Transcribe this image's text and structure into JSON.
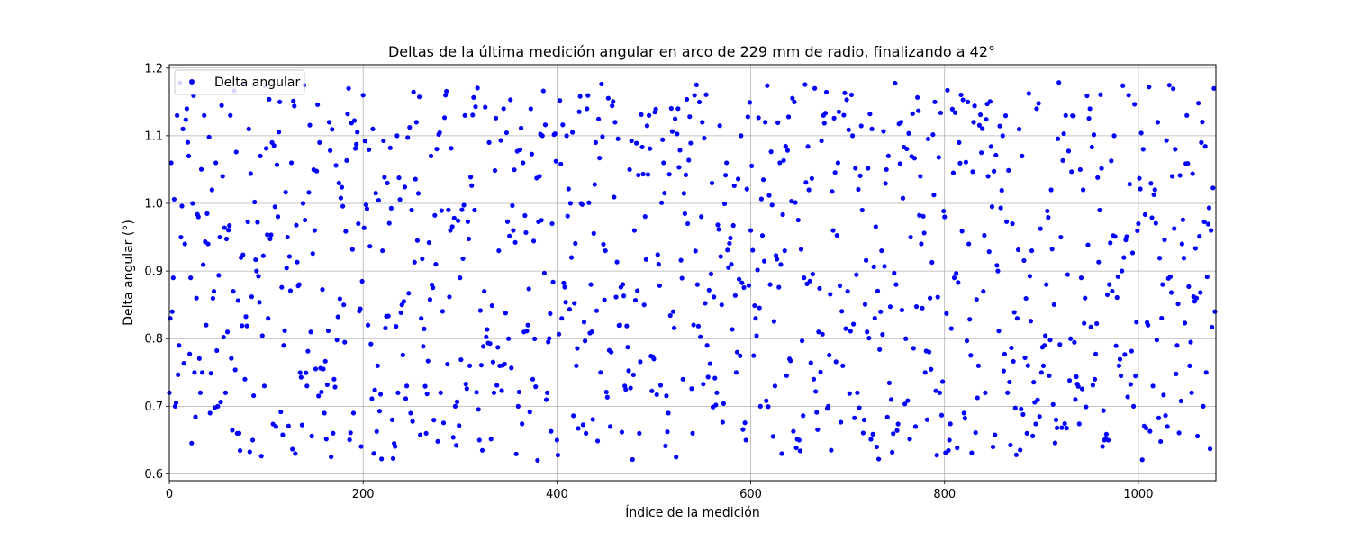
{
  "chart_data": {
    "type": "scatter",
    "title": "Deltas de la última medición angular en arco de 229 mm de radio, finalizando a 42°",
    "xlabel": "Índice de la medición",
    "ylabel": "Delta angular (°)",
    "xlim": [
      0,
      1080
    ],
    "ylim": [
      0.59,
      1.205
    ],
    "xticks": [
      0,
      200,
      400,
      600,
      800,
      1000
    ],
    "yticks": [
      0.6,
      0.7,
      0.8,
      0.9,
      1.0,
      1.1,
      1.2
    ],
    "xtick_labels": [
      "0",
      "200",
      "400",
      "600",
      "800",
      "1000"
    ],
    "ytick_labels": [
      "0.6",
      "0.7",
      "0.8",
      "0.9",
      "1.0",
      "1.1",
      "1.2"
    ],
    "grid": true,
    "legend_position": "top-left",
    "series": [
      {
        "name": "Delta angular",
        "color": "#0000ff",
        "marker": "circle",
        "point_count": 1080,
        "value_range": [
          0.62,
          1.18
        ],
        "note_range": "approx uniform noise between 0.62 and 1.18",
        "sample_points": [
          [
            0,
            0.72
          ],
          [
            1,
            0.83
          ],
          [
            2,
            1.06
          ],
          [
            3,
            0.84
          ],
          [
            4,
            0.89
          ],
          [
            6,
            0.7
          ],
          [
            8,
            1.13
          ],
          [
            10,
            0.79
          ],
          [
            12,
            0.95
          ],
          [
            14,
            1.11
          ],
          [
            16,
            0.94
          ],
          [
            18,
            1.14
          ],
          [
            20,
            1.07
          ],
          [
            22,
            0.89
          ],
          [
            24,
            1.0
          ],
          [
            26,
            0.75
          ],
          [
            28,
            0.86
          ],
          [
            30,
            0.98
          ],
          [
            32,
            0.72
          ],
          [
            34,
            0.75
          ],
          [
            36,
            1.13
          ],
          [
            38,
            0.82
          ],
          [
            40,
            0.94
          ],
          [
            42,
            0.69
          ],
          [
            44,
            1.02
          ],
          [
            46,
            0.87
          ],
          [
            48,
            1.06
          ],
          [
            50,
            0.7
          ],
          [
            52,
            0.95
          ],
          [
            55,
            1.04
          ],
          [
            58,
            0.72
          ],
          [
            60,
            0.81
          ],
          [
            63,
            1.13
          ],
          [
            66,
            0.87
          ],
          [
            70,
            0.66
          ],
          [
            74,
            0.92
          ],
          [
            78,
            0.74
          ],
          [
            82,
            1.11
          ],
          [
            86,
            0.65
          ],
          [
            90,
            0.9
          ],
          [
            94,
            1.07
          ],
          [
            98,
            0.73
          ],
          [
            102,
            0.83
          ],
          [
            106,
            1.09
          ],
          [
            110,
            0.67
          ],
          [
            114,
            1.15
          ],
          [
            118,
            0.79
          ],
          [
            122,
            0.95
          ],
          [
            126,
            1.06
          ],
          [
            130,
            0.63
          ],
          [
            134,
            0.88
          ],
          [
            138,
            1.0
          ],
          [
            142,
            0.73
          ],
          [
            146,
            0.81
          ],
          [
            150,
            0.96
          ],
          [
            155,
            1.09
          ],
          [
            160,
            0.69
          ],
          [
            165,
            1.12
          ],
          [
            170,
            0.74
          ],
          [
            175,
            1.03
          ],
          [
            180,
            0.85
          ],
          [
            185,
            1.17
          ],
          [
            190,
            0.69
          ],
          [
            195,
            0.97
          ],
          [
            200,
            1.16
          ],
          [
            205,
            0.82
          ],
          [
            210,
            1.11
          ],
          [
            215,
            0.76
          ],
          [
            220,
            0.93
          ],
          [
            225,
            1.03
          ],
          [
            230,
            0.68
          ],
          [
            235,
            1.1
          ],
          [
            240,
            0.85
          ],
          [
            245,
            0.73
          ],
          [
            250,
            0.99
          ],
          [
            255,
            1.12
          ],
          [
            260,
            0.83
          ],
          [
            265,
            0.66
          ],
          [
            270,
            1.07
          ],
          [
            275,
            0.91
          ],
          [
            280,
            0.72
          ],
          [
            285,
            1.16
          ],
          [
            290,
            0.96
          ],
          [
            295,
            0.7
          ],
          [
            300,
            0.89
          ],
          [
            305,
            1.13
          ],
          [
            310,
            0.76
          ],
          [
            315,
            0.99
          ],
          [
            320,
            0.65
          ],
          [
            325,
            0.87
          ],
          [
            330,
            1.09
          ],
          [
            335,
            0.72
          ],
          [
            340,
            0.93
          ],
          [
            345,
            1.14
          ],
          [
            350,
            0.8
          ],
          [
            355,
            0.96
          ],
          [
            360,
            0.7
          ],
          [
            365,
            1.06
          ],
          [
            370,
            0.82
          ],
          [
            375,
            0.74
          ],
          [
            380,
            0.62
          ],
          [
            385,
            1.1
          ],
          [
            390,
            0.72
          ],
          [
            395,
            0.97
          ],
          [
            400,
            0.65
          ],
          [
            405,
            0.83
          ],
          [
            410,
            1.1
          ],
          [
            415,
            0.92
          ],
          [
            420,
            0.76
          ],
          [
            425,
            1.0
          ],
          [
            430,
            0.66
          ],
          [
            435,
            0.88
          ],
          [
            440,
            1.09
          ],
          [
            445,
            0.75
          ],
          [
            450,
            0.93
          ],
          [
            455,
            0.67
          ],
          [
            460,
            1.12
          ],
          [
            465,
            0.82
          ],
          [
            470,
            0.73
          ],
          [
            475,
            1.05
          ],
          [
            480,
            0.96
          ],
          [
            485,
            0.66
          ],
          [
            490,
            0.85
          ],
          [
            495,
            1.13
          ],
          [
            500,
            0.77
          ],
          [
            505,
            0.91
          ],
          [
            510,
            1.06
          ],
          [
            515,
            0.69
          ],
          [
            520,
            0.84
          ],
          [
            525,
            1.14
          ],
          [
            530,
            0.74
          ],
          [
            535,
            0.97
          ],
          [
            540,
            0.66
          ],
          [
            545,
            0.88
          ],
          [
            550,
            1.12
          ],
          [
            555,
            0.79
          ],
          [
            560,
            1.03
          ],
          [
            565,
            0.72
          ],
          [
            570,
            0.85
          ],
          [
            575,
            1.06
          ],
          [
            580,
            0.91
          ],
          [
            585,
            0.75
          ],
          [
            590,
            1.1
          ],
          [
            595,
            0.65
          ],
          [
            600,
            0.96
          ],
          [
            605,
            0.83
          ],
          [
            610,
            0.7
          ],
          [
            615,
            1.12
          ],
          [
            620,
            0.88
          ],
          [
            625,
            0.73
          ],
          [
            630,
            1.06
          ],
          [
            635,
            0.93
          ],
          [
            640,
            0.77
          ],
          [
            645,
            1.15
          ],
          [
            650,
            0.65
          ],
          [
            655,
            0.89
          ],
          [
            660,
            1.02
          ],
          [
            665,
            0.74
          ],
          [
            670,
            0.81
          ],
          [
            675,
            1.13
          ],
          [
            680,
            0.7
          ],
          [
            685,
            0.96
          ],
          [
            690,
            1.06
          ],
          [
            695,
            0.76
          ],
          [
            700,
            0.87
          ],
          [
            705,
            1.1
          ],
          [
            710,
            0.72
          ],
          [
            715,
            0.99
          ],
          [
            720,
            0.81
          ],
          [
            725,
            1.11
          ],
          [
            730,
            0.64
          ],
          [
            735,
            0.93
          ],
          [
            740,
            1.05
          ],
          [
            745,
            0.71
          ],
          [
            750,
            0.88
          ],
          [
            755,
            1.12
          ],
          [
            760,
            0.8
          ],
          [
            765,
            0.95
          ],
          [
            770,
            0.67
          ],
          [
            775,
            1.04
          ],
          [
            780,
            0.75
          ],
          [
            785,
            0.86
          ],
          [
            790,
            1.15
          ],
          [
            795,
            0.72
          ],
          [
            800,
            0.98
          ],
          [
            805,
            0.65
          ],
          [
            810,
            0.89
          ],
          [
            815,
            1.09
          ],
          [
            820,
            0.69
          ],
          [
            825,
            0.94
          ],
          [
            830,
            1.12
          ],
          [
            835,
            0.76
          ],
          [
            840,
            0.87
          ],
          [
            845,
            1.04
          ],
          [
            850,
            0.64
          ],
          [
            855,
            0.9
          ],
          [
            860,
            1.1
          ],
          [
            865,
            0.72
          ],
          [
            870,
            0.97
          ],
          [
            875,
            0.83
          ],
          [
            880,
            1.07
          ],
          [
            885,
            0.66
          ],
          [
            890,
            0.93
          ],
          [
            895,
            1.14
          ],
          [
            900,
            0.75
          ],
          [
            905,
            0.88
          ],
          [
            910,
            1.02
          ],
          [
            915,
            0.68
          ],
          [
            920,
            0.95
          ],
          [
            925,
            1.13
          ],
          [
            930,
            0.8
          ],
          [
            935,
            0.71
          ],
          [
            940,
            1.05
          ],
          [
            945,
            0.86
          ],
          [
            950,
            1.14
          ],
          [
            955,
            0.74
          ],
          [
            960,
            0.99
          ],
          [
            965,
            0.65
          ],
          [
            970,
            0.88
          ],
          [
            975,
            1.1
          ],
          [
            980,
            0.76
          ],
          [
            985,
            0.92
          ],
          [
            990,
            1.16
          ],
          [
            995,
            0.7
          ],
          [
            1000,
            0.97
          ],
          [
            1005,
            1.08
          ],
          [
            1010,
            0.82
          ],
          [
            1015,
            0.73
          ],
          [
            1020,
            1.12
          ],
          [
            1025,
            0.88
          ],
          [
            1030,
            0.67
          ],
          [
            1035,
            1.04
          ],
          [
            1040,
            0.79
          ],
          [
            1045,
            0.94
          ],
          [
            1050,
            1.13
          ],
          [
            1055,
            0.72
          ],
          [
            1060,
            0.86
          ],
          [
            1065,
            1.09
          ],
          [
            1070,
            0.75
          ],
          [
            1075,
            0.96
          ],
          [
            1078,
            1.17
          ],
          [
            1079,
            0.84
          ]
        ]
      }
    ]
  }
}
